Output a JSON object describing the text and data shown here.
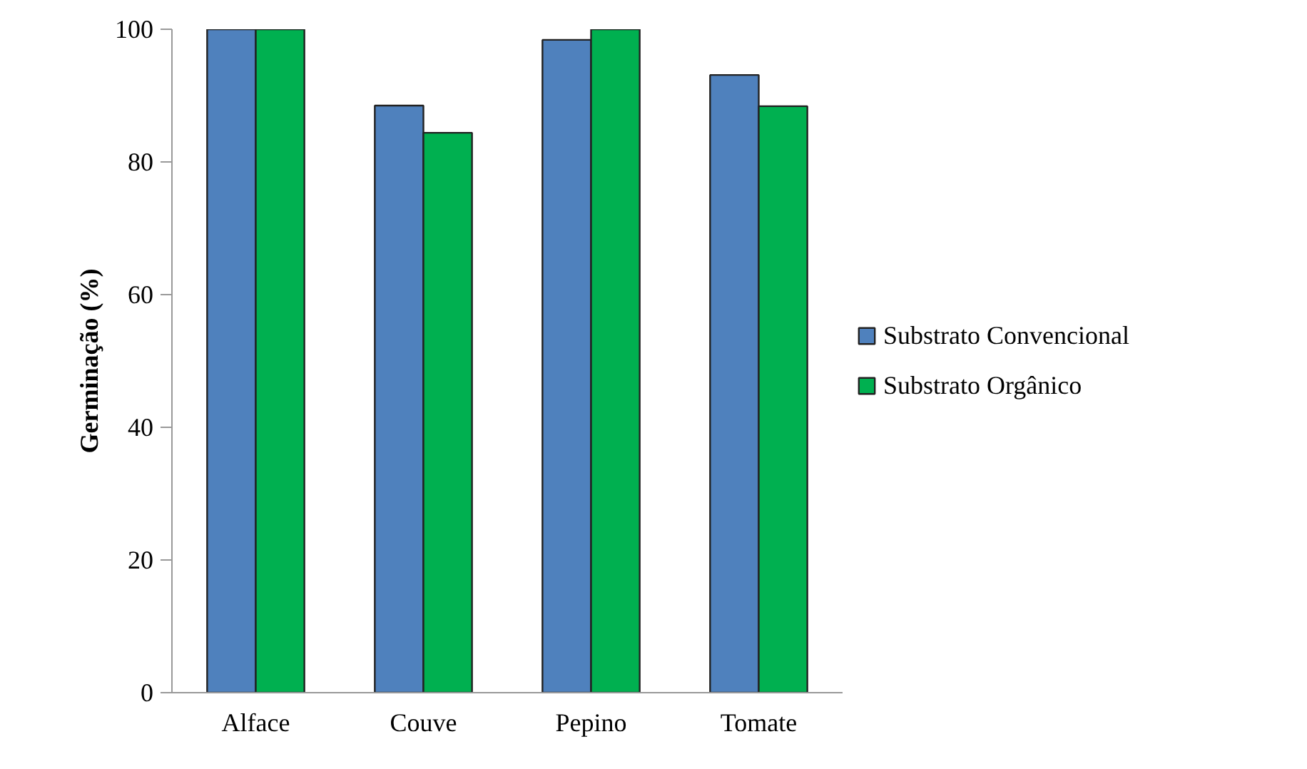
{
  "chart_data": {
    "type": "bar",
    "ylabel": "Germinação (%)",
    "categories": [
      "Alface",
      "Couve",
      "Pepino",
      "Tomate"
    ],
    "series": [
      {
        "name": "Substrato Convencional",
        "color": "#4f81bd",
        "values": [
          100,
          88.5,
          98.4,
          93.1
        ]
      },
      {
        "name": "Substrato Orgânico",
        "color": "#00b050",
        "values": [
          100,
          84.4,
          100,
          88.4
        ]
      }
    ],
    "ylim": [
      0,
      100
    ],
    "yticks": [
      0,
      20,
      40,
      60,
      80,
      100
    ],
    "grid": false,
    "legend": "right"
  }
}
